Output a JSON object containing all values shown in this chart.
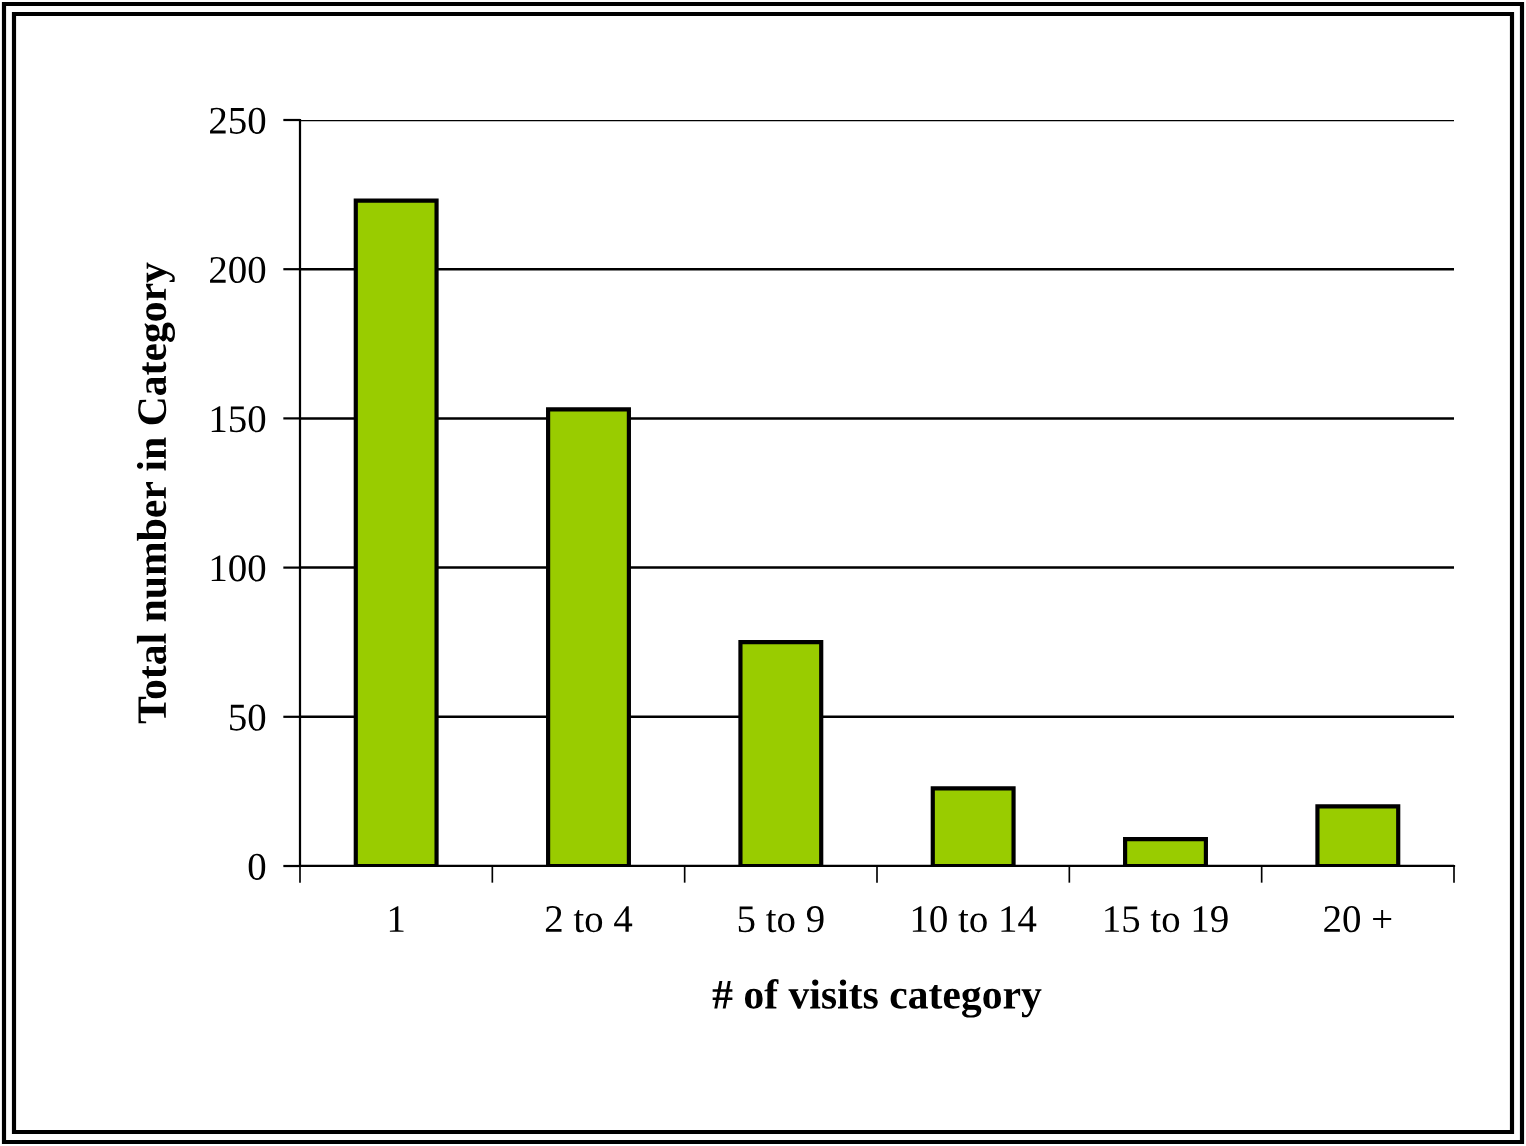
{
  "chart_data": {
    "type": "bar",
    "xlabel": "# of visits category",
    "ylabel": "Total number in Category",
    "categories": [
      "1",
      "2 to 4",
      "5 to 9",
      "10 to 14",
      "15 to 19",
      "20 +"
    ],
    "values": [
      223,
      153,
      75,
      26,
      9,
      20
    ],
    "color": "#99cc00",
    "ylim": [
      0,
      250
    ],
    "yticks": [
      0,
      50,
      100,
      150,
      200,
      250
    ],
    "grid": "y"
  }
}
